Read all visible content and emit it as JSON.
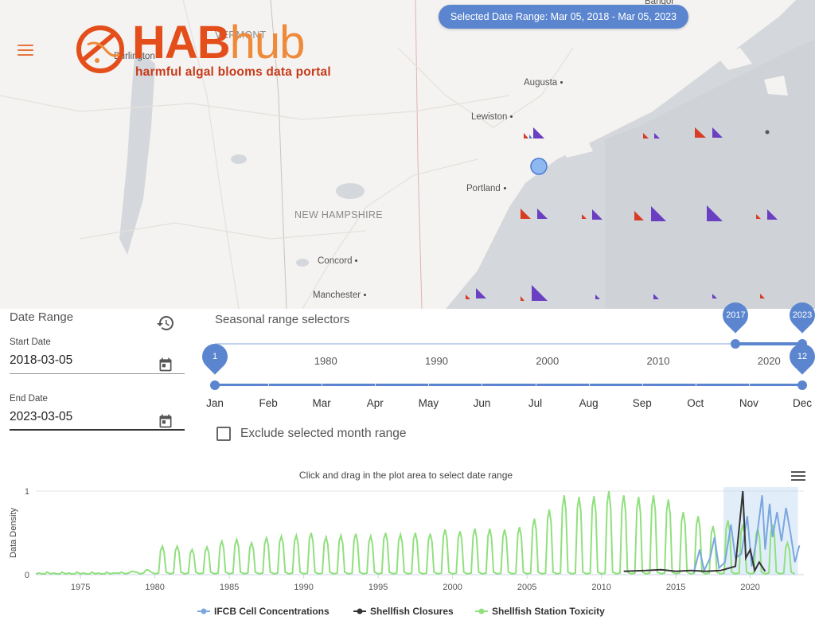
{
  "header": {
    "logo_text_main": "HAB",
    "logo_text_accent": "hub",
    "logo_tagline": "harmful algal blooms data portal",
    "menu_icon": "hamburger-menu-icon",
    "selected_range_pill": "Selected Date Range: Mar 05, 2018 - Mar 05, 2023",
    "colors": {
      "brand_red": "#e34e1b",
      "brand_orange": "#ee8a3a",
      "accent_blue": "#5b86cf"
    }
  },
  "map": {
    "places": {
      "bangor": "Bangor",
      "burlington": "Burlington",
      "vermont": "VERMONT",
      "augusta": "Augusta",
      "lewiston": "Lewiston",
      "portland": "Portland",
      "new_hampshire": "NEW HAMPSHIRE",
      "concord": "Concord",
      "manchester": "Manchester"
    },
    "marker_colors": {
      "closures": "#d93c26",
      "toxicity": "#6a3fc2",
      "ifcb": "#8fb8f0"
    }
  },
  "date_range": {
    "title": "Date Range",
    "reset_icon": "history-icon",
    "start_label": "Start Date",
    "start_value": "2018-03-05",
    "end_label": "End Date",
    "end_value": "2023-03-05",
    "calendar_icon": "calendar-icon"
  },
  "seasonal": {
    "title": "Seasonal range selectors",
    "year_ticks": [
      "1980",
      "1990",
      "2000",
      "2010",
      "2020"
    ],
    "year_start": 1970,
    "year_end": 2023,
    "year_selected": [
      2017,
      2023
    ],
    "year_handle_labels": [
      "2017",
      "2023"
    ],
    "months": [
      "Jan",
      "Feb",
      "Mar",
      "Apr",
      "May",
      "Jun",
      "Jul",
      "Aug",
      "Sep",
      "Oct",
      "Nov",
      "Dec"
    ],
    "month_selected": [
      1,
      12
    ],
    "month_handle_labels": [
      "1",
      "12"
    ],
    "exclude_label": "Exclude selected month range",
    "exclude_checked": false
  },
  "chart_data": {
    "type": "line",
    "title": "Click and drag in the plot area to select date range",
    "ylabel": "Data Density",
    "xlabel": "",
    "xlim": [
      1972,
      2023.6
    ],
    "ylim": [
      0,
      1
    ],
    "x_ticks": [
      "1975",
      "1980",
      "1985",
      "1990",
      "1995",
      "2000",
      "2005",
      "2010",
      "2015",
      "2020"
    ],
    "y_ticks": [
      "0",
      "1"
    ],
    "selected_band": [
      2018.2,
      2023.2
    ],
    "series": [
      {
        "name": "Shellfish Station Toxicity",
        "color": "#90e07e",
        "seasonal_peaks": [
          [
            1972.5,
            0.01
          ],
          [
            1973.5,
            0.01
          ],
          [
            1974.5,
            0.01
          ],
          [
            1975.5,
            0.01
          ],
          [
            1976.5,
            0.01
          ],
          [
            1977.5,
            0.02
          ],
          [
            1978.5,
            0.04
          ],
          [
            1979.5,
            0.06
          ],
          [
            1980.5,
            0.34
          ],
          [
            1981.5,
            0.34
          ],
          [
            1982.5,
            0.3
          ],
          [
            1983.5,
            0.33
          ],
          [
            1984.5,
            0.4
          ],
          [
            1985.5,
            0.42
          ],
          [
            1986.5,
            0.38
          ],
          [
            1987.5,
            0.44
          ],
          [
            1988.5,
            0.46
          ],
          [
            1989.5,
            0.47
          ],
          [
            1990.5,
            0.5
          ],
          [
            1991.5,
            0.45
          ],
          [
            1992.5,
            0.47
          ],
          [
            1993.5,
            0.49
          ],
          [
            1994.5,
            0.46
          ],
          [
            1995.5,
            0.5
          ],
          [
            1996.5,
            0.48
          ],
          [
            1997.5,
            0.5
          ],
          [
            1998.5,
            0.49
          ],
          [
            1999.5,
            0.54
          ],
          [
            2000.5,
            0.52
          ],
          [
            2001.5,
            0.55
          ],
          [
            2002.5,
            0.55
          ],
          [
            2003.5,
            0.54
          ],
          [
            2004.5,
            0.57
          ],
          [
            2005.5,
            0.67
          ],
          [
            2006.5,
            0.78
          ],
          [
            2007.5,
            0.95
          ],
          [
            2008.5,
            0.93
          ],
          [
            2009.5,
            0.94
          ],
          [
            2010.5,
            1.0
          ],
          [
            2011.5,
            0.95
          ],
          [
            2012.5,
            0.93
          ],
          [
            2013.5,
            0.95
          ],
          [
            2014.5,
            0.9
          ],
          [
            2015.5,
            0.75
          ],
          [
            2016.5,
            0.7
          ],
          [
            2017.5,
            0.58
          ],
          [
            2018.5,
            0.65
          ],
          [
            2019.5,
            0.6
          ],
          [
            2020.5,
            0.55
          ],
          [
            2021.5,
            0.6
          ],
          [
            2022.5,
            0.38
          ]
        ]
      },
      {
        "name": "IFCB Cell Concentrations",
        "color": "#7ba7e0",
        "points": [
          [
            2016.2,
            0.02
          ],
          [
            2016.6,
            0.3
          ],
          [
            2016.9,
            0.05
          ],
          [
            2017.3,
            0.2
          ],
          [
            2017.6,
            0.45
          ],
          [
            2017.9,
            0.08
          ],
          [
            2018.3,
            0.15
          ],
          [
            2018.7,
            0.6
          ],
          [
            2019.0,
            0.2
          ],
          [
            2019.4,
            0.25
          ],
          [
            2019.8,
            0.7
          ],
          [
            2020.1,
            0.1
          ],
          [
            2020.4,
            0.4
          ],
          [
            2020.8,
            0.95
          ],
          [
            2021.0,
            0.3
          ],
          [
            2021.3,
            0.85
          ],
          [
            2021.5,
            0.45
          ],
          [
            2021.8,
            0.75
          ],
          [
            2022.1,
            0.4
          ],
          [
            2022.4,
            0.8
          ],
          [
            2022.7,
            0.5
          ],
          [
            2023.0,
            0.15
          ],
          [
            2023.3,
            0.35
          ]
        ]
      },
      {
        "name": "Shellfish Closures",
        "color": "#333333",
        "points": [
          [
            2011.5,
            0.04
          ],
          [
            2013.0,
            0.05
          ],
          [
            2014.0,
            0.06
          ],
          [
            2015.0,
            0.04
          ],
          [
            2016.0,
            0.05
          ],
          [
            2017.0,
            0.04
          ],
          [
            2018.0,
            0.05
          ],
          [
            2019.0,
            0.1
          ],
          [
            2019.5,
            1.0
          ],
          [
            2019.7,
            0.2
          ],
          [
            2020.0,
            0.3
          ],
          [
            2020.3,
            0.05
          ],
          [
            2020.6,
            0.15
          ],
          [
            2021.0,
            0.04
          ]
        ]
      }
    ],
    "legend": [
      "IFCB Cell Concentrations",
      "Shellfish Closures",
      "Shellfish Station Toxicity"
    ]
  },
  "chart_menu_icon": "chart-menu-icon"
}
